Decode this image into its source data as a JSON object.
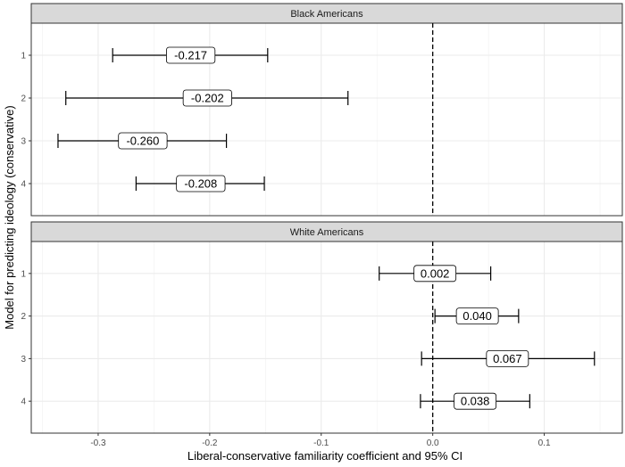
{
  "chart_data": {
    "type": "errorbar",
    "xlabel": "Liberal-conservative familiarity coefficient and 95% CI",
    "ylabel": "Model for predicting ideology (conservative)",
    "xlim": [
      -0.36,
      0.17
    ],
    "xticks": [
      -0.3,
      -0.2,
      -0.1,
      0.0,
      0.1
    ],
    "xtick_labels": [
      "-0.3",
      "-0.2",
      "-0.1",
      "0.0",
      "0.1"
    ],
    "reference_line_x": 0,
    "grid": true,
    "panels": [
      {
        "title": "Black Americans",
        "categories": [
          "1",
          "2",
          "3",
          "4"
        ],
        "estimates": [
          -0.217,
          -0.202,
          -0.26,
          -0.208
        ],
        "labels": [
          "-0.217",
          "-0.202",
          "-0.260",
          "-0.208"
        ],
        "ci_low": [
          -0.287,
          -0.329,
          -0.336,
          -0.266
        ],
        "ci_high": [
          -0.148,
          -0.076,
          -0.185,
          -0.151
        ]
      },
      {
        "title": "White Americans",
        "categories": [
          "1",
          "2",
          "3",
          "4"
        ],
        "estimates": [
          0.002,
          0.04,
          0.067,
          0.038
        ],
        "labels": [
          "0.002",
          "0.040",
          "0.067",
          "0.038"
        ],
        "ci_low": [
          -0.048,
          0.002,
          -0.01,
          -0.011
        ],
        "ci_high": [
          0.052,
          0.077,
          0.145,
          0.087
        ]
      }
    ]
  }
}
